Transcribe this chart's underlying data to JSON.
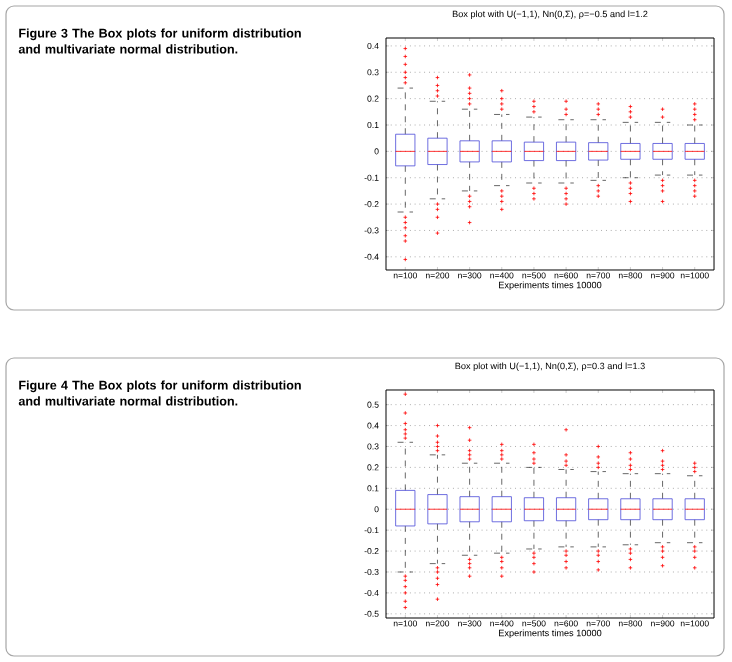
{
  "chart_data": [
    {
      "type": "box",
      "title": "Box plot with U(−1,1), Nn(0,Σ), ρ=−0.5 and l=1.2",
      "xlabel": "Experiments times 10000",
      "annotations": [
        "Figure 3  The Box plots for uniform distribution and multivariate normal distribution."
      ],
      "categories": [
        "n=100",
        "n=200",
        "n=300",
        "n=400",
        "n=500",
        "n=600",
        "n=700",
        "n=800",
        "n=900",
        "n=1000"
      ],
      "color": "#4a4ad8",
      "boxes": [
        {
          "low": -0.23,
          "q1": -0.055,
          "median": 0,
          "q3": 0.065,
          "high": 0.24,
          "outliers": [
            0.26,
            0.28,
            0.3,
            0.33,
            0.36,
            0.39,
            -0.25,
            -0.27,
            -0.29,
            -0.32,
            -0.34,
            -0.41
          ]
        },
        {
          "low": -0.18,
          "q1": -0.05,
          "median": 0,
          "q3": 0.05,
          "high": 0.19,
          "outliers": [
            0.21,
            0.23,
            0.25,
            0.28,
            -0.2,
            -0.22,
            -0.25,
            -0.31
          ]
        },
        {
          "low": -0.15,
          "q1": -0.04,
          "median": 0,
          "q3": 0.04,
          "high": 0.16,
          "outliers": [
            0.18,
            0.2,
            0.22,
            0.24,
            0.29,
            -0.17,
            -0.19,
            -0.21,
            -0.27
          ]
        },
        {
          "low": -0.13,
          "q1": -0.04,
          "median": 0,
          "q3": 0.04,
          "high": 0.14,
          "outliers": [
            0.16,
            0.18,
            0.2,
            0.23,
            -0.15,
            -0.17,
            -0.19,
            -0.22
          ]
        },
        {
          "low": -0.12,
          "q1": -0.035,
          "median": 0,
          "q3": 0.035,
          "high": 0.13,
          "outliers": [
            0.15,
            0.17,
            0.19,
            -0.14,
            -0.16,
            -0.18
          ]
        },
        {
          "low": -0.12,
          "q1": -0.035,
          "median": 0,
          "q3": 0.035,
          "high": 0.12,
          "outliers": [
            0.14,
            0.16,
            0.19,
            -0.14,
            -0.16,
            -0.18,
            -0.2
          ]
        },
        {
          "low": -0.11,
          "q1": -0.033,
          "median": 0,
          "q3": 0.033,
          "high": 0.12,
          "outliers": [
            0.14,
            0.16,
            0.18,
            -0.13,
            -0.15,
            -0.17
          ]
        },
        {
          "low": -0.1,
          "q1": -0.03,
          "median": 0,
          "q3": 0.03,
          "high": 0.11,
          "outliers": [
            0.13,
            0.15,
            0.17,
            -0.12,
            -0.14,
            -0.16,
            -0.19
          ]
        },
        {
          "low": -0.09,
          "q1": -0.03,
          "median": 0,
          "q3": 0.03,
          "high": 0.11,
          "outliers": [
            0.13,
            0.16,
            -0.11,
            -0.13,
            -0.15,
            -0.19
          ]
        },
        {
          "low": -0.09,
          "q1": -0.03,
          "median": 0,
          "q3": 0.03,
          "high": 0.1,
          "outliers": [
            0.12,
            0.14,
            0.16,
            0.18,
            -0.11,
            -0.13,
            -0.15,
            -0.17
          ]
        }
      ],
      "ylim": [
        -0.45,
        0.43
      ],
      "yticks": [
        -0.4,
        -0.3,
        -0.2,
        -0.1,
        0,
        0.1,
        0.2,
        0.3,
        0.4
      ],
      "grid": "y"
    },
    {
      "type": "box",
      "title": "Box plot with U(−1,1), Nn(0,Σ), ρ=0.3 and l=1.3",
      "xlabel": "Experiments times 10000",
      "annotations": [
        "Figure 4  The Box plots for uniform distribution and multivariate normal distribution."
      ],
      "categories": [
        "n=100",
        "n=200",
        "n=300",
        "n=400",
        "n=500",
        "n=600",
        "n=700",
        "n=800",
        "n=900",
        "n=1000"
      ],
      "color": "#4a4ad8",
      "boxes": [
        {
          "low": -0.3,
          "q1": -0.08,
          "median": 0,
          "q3": 0.09,
          "high": 0.32,
          "outliers": [
            0.34,
            0.36,
            0.38,
            0.41,
            0.46,
            0.55,
            -0.32,
            -0.34,
            -0.37,
            -0.4,
            -0.44,
            -0.47
          ]
        },
        {
          "low": -0.26,
          "q1": -0.07,
          "median": 0,
          "q3": 0.07,
          "high": 0.26,
          "outliers": [
            0.28,
            0.3,
            0.32,
            0.35,
            0.4,
            -0.28,
            -0.3,
            -0.33,
            -0.36,
            -0.43
          ]
        },
        {
          "low": -0.22,
          "q1": -0.06,
          "median": 0,
          "q3": 0.06,
          "high": 0.22,
          "outliers": [
            0.24,
            0.26,
            0.28,
            0.33,
            0.39,
            -0.24,
            -0.26,
            -0.28,
            -0.32
          ]
        },
        {
          "low": -0.21,
          "q1": -0.06,
          "median": 0,
          "q3": 0.06,
          "high": 0.22,
          "outliers": [
            0.24,
            0.26,
            0.28,
            0.31,
            -0.23,
            -0.25,
            -0.28,
            -0.32
          ]
        },
        {
          "low": -0.19,
          "q1": -0.055,
          "median": 0,
          "q3": 0.055,
          "high": 0.2,
          "outliers": [
            0.22,
            0.24,
            0.27,
            0.31,
            -0.21,
            -0.23,
            -0.26,
            -0.3
          ]
        },
        {
          "low": -0.18,
          "q1": -0.055,
          "median": 0,
          "q3": 0.055,
          "high": 0.19,
          "outliers": [
            0.21,
            0.23,
            0.26,
            0.38,
            -0.2,
            -0.22,
            -0.25,
            -0.28
          ]
        },
        {
          "low": -0.18,
          "q1": -0.05,
          "median": 0,
          "q3": 0.05,
          "high": 0.18,
          "outliers": [
            0.2,
            0.22,
            0.25,
            0.3,
            -0.2,
            -0.22,
            -0.25,
            -0.29
          ]
        },
        {
          "low": -0.17,
          "q1": -0.05,
          "median": 0,
          "q3": 0.05,
          "high": 0.17,
          "outliers": [
            0.19,
            0.21,
            0.24,
            0.27,
            -0.19,
            -0.21,
            -0.24,
            -0.28
          ]
        },
        {
          "low": -0.16,
          "q1": -0.05,
          "median": 0,
          "q3": 0.05,
          "high": 0.17,
          "outliers": [
            0.19,
            0.21,
            0.23,
            0.28,
            -0.18,
            -0.2,
            -0.23,
            -0.27
          ]
        },
        {
          "low": -0.16,
          "q1": -0.05,
          "median": 0,
          "q3": 0.05,
          "high": 0.16,
          "outliers": [
            0.18,
            0.2,
            0.22,
            -0.18,
            -0.2,
            -0.23,
            -0.28
          ]
        }
      ],
      "ylim": [
        -0.52,
        0.57
      ],
      "yticks": [
        -0.5,
        -0.4,
        -0.3,
        -0.2,
        -0.1,
        0,
        0.1,
        0.2,
        0.3,
        0.4,
        0.5
      ],
      "grid": "y"
    }
  ]
}
